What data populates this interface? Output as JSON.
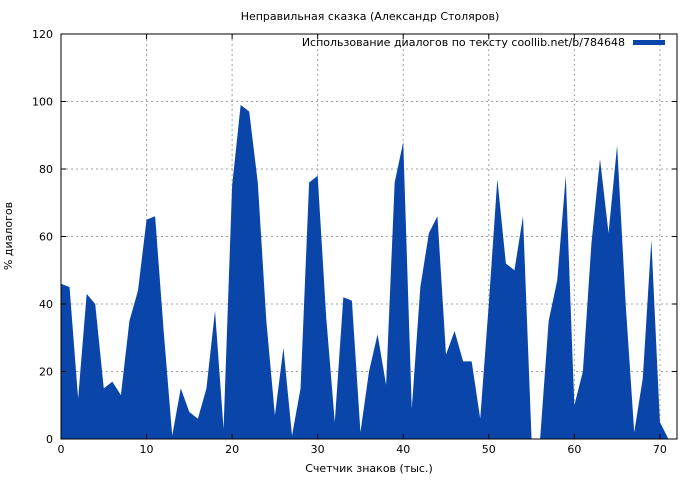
{
  "chart_data": {
    "type": "area",
    "title": "Неправильная сказка (Александр Столяров)",
    "xlabel": "Счетчик знаков (тыс.)",
    "ylabel": "% диалогов",
    "xlim": [
      0,
      72
    ],
    "ylim": [
      0,
      120
    ],
    "xticks": [
      0,
      10,
      20,
      30,
      40,
      50,
      60,
      70
    ],
    "yticks": [
      0,
      20,
      40,
      60,
      80,
      100,
      120
    ],
    "grid": true,
    "legend_position": "top-right",
    "color": "#0a46aa",
    "series": [
      {
        "name": "Использование диалогов по тексту coollib.net/b/784648",
        "x": [
          0,
          1,
          2,
          3,
          4,
          5,
          6,
          7,
          8,
          9,
          10,
          11,
          12,
          13,
          14,
          15,
          16,
          17,
          18,
          19,
          20,
          21,
          22,
          23,
          24,
          25,
          26,
          27,
          28,
          29,
          30,
          31,
          32,
          33,
          34,
          35,
          36,
          37,
          38,
          39,
          40,
          41,
          42,
          43,
          44,
          45,
          46,
          47,
          48,
          49,
          50,
          51,
          52,
          53,
          54,
          55,
          56,
          57,
          58,
          59,
          60,
          61,
          62,
          63,
          64,
          65,
          66,
          67,
          68,
          69,
          70,
          71
        ],
        "y": [
          46,
          45,
          12,
          43,
          40,
          15,
          17,
          13,
          35,
          44,
          65,
          66,
          32,
          1,
          15,
          8,
          6,
          15,
          38,
          3,
          75,
          99,
          97,
          76,
          35,
          7,
          27,
          1,
          15,
          76,
          78,
          36,
          5,
          42,
          41,
          2,
          20,
          31,
          16,
          76,
          88,
          9,
          45,
          61,
          66,
          25,
          32,
          23,
          23,
          6,
          40,
          77,
          52,
          50,
          66,
          0,
          0,
          35,
          47,
          78,
          10,
          20,
          58,
          83,
          61,
          87,
          40,
          2,
          18,
          59,
          5,
          0
        ]
      }
    ]
  }
}
